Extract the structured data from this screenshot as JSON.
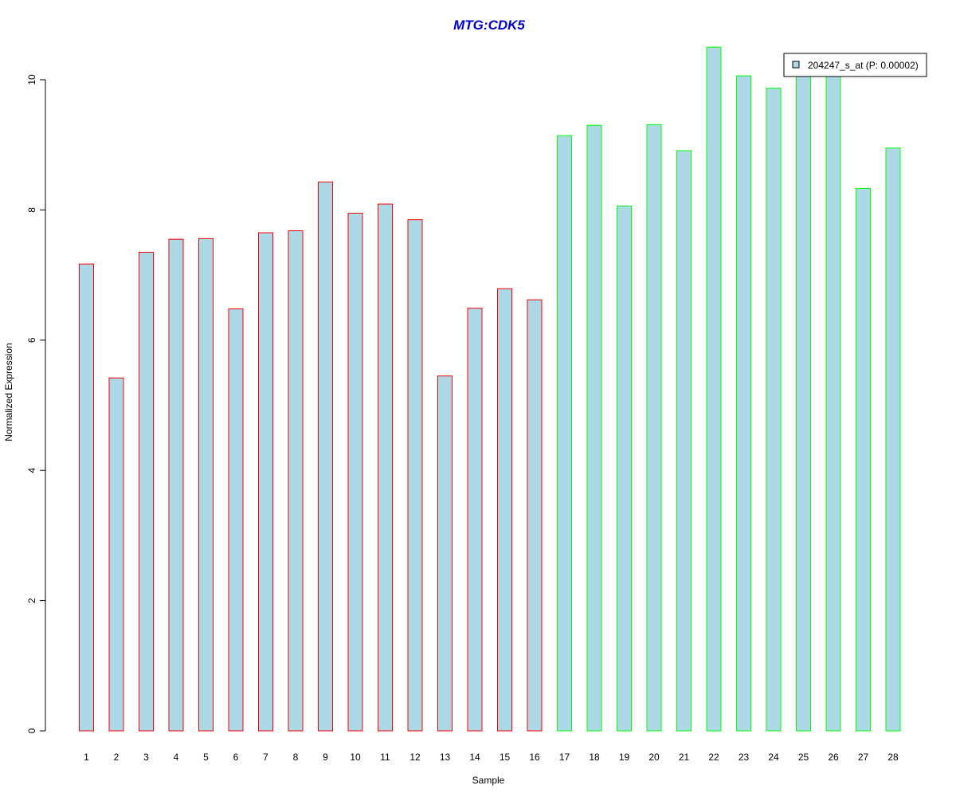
{
  "chart_data": {
    "type": "bar",
    "title": "MTG:CDK5",
    "xlabel": "Sample",
    "ylabel": "Normalized Expression",
    "categories": [
      "1",
      "2",
      "3",
      "4",
      "5",
      "6",
      "7",
      "8",
      "9",
      "10",
      "11",
      "12",
      "13",
      "14",
      "15",
      "16",
      "17",
      "18",
      "19",
      "20",
      "21",
      "22",
      "23",
      "24",
      "25",
      "26",
      "27",
      "28"
    ],
    "series": [
      {
        "name": "204247_s_at (P: 0.00002)",
        "values": [
          7.17,
          5.42,
          7.35,
          7.55,
          7.56,
          6.48,
          7.65,
          7.68,
          8.43,
          7.95,
          8.09,
          7.85,
          5.45,
          6.49,
          6.79,
          6.62,
          9.14,
          9.3,
          8.06,
          9.31,
          8.91,
          10.5,
          10.06,
          9.87,
          10.1,
          10.1,
          8.33,
          8.95
        ]
      }
    ],
    "groups": [
      {
        "samples": [
          1,
          16
        ],
        "border_color": "#ff0000"
      },
      {
        "samples": [
          17,
          28
        ],
        "border_color": "#00ff00"
      }
    ],
    "yticks": [
      0,
      2,
      4,
      6,
      8,
      10
    ],
    "ylim": [
      0,
      10.5
    ],
    "bar_fill": "#add8e6",
    "title_color": "#0000cc",
    "legend_position": "top-right",
    "grid": false
  }
}
